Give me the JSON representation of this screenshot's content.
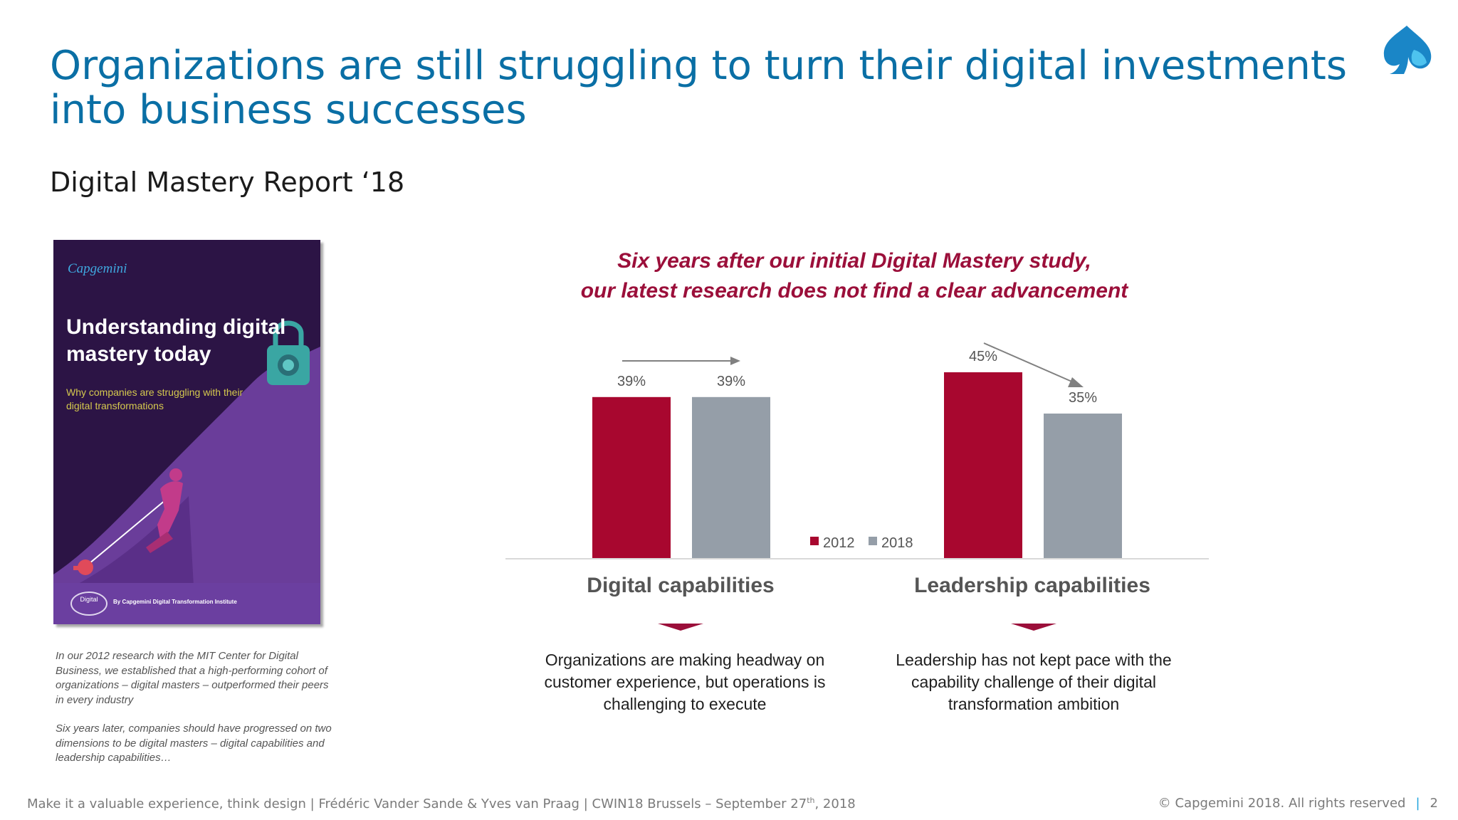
{
  "slide": {
    "title": "Organizations are still struggling to turn their digital investments into business successes",
    "subtitle": "Digital Mastery Report ‘18"
  },
  "book_cover": {
    "brand": "Capgemini",
    "title": "Understanding digital mastery today",
    "subtitle": "Why companies are struggling with their digital transformations",
    "badge": "Digital",
    "footer": "By Capgemini Digital Transformation Institute"
  },
  "side_note": {
    "paragraph_1": "In our 2012 research with the MIT Center for Digital Business, we established that a high-performing cohort of organizations – digital masters – outperformed their peers in every industry",
    "paragraph_2": "Six years later, companies should have progressed on two dimensions to be digital masters – digital capabilities and leadership capabilities…"
  },
  "chart_headline": {
    "line1": "Six years after our initial Digital Mastery study,",
    "line2": "our latest research does not find a clear advancement"
  },
  "chart_data": {
    "type": "bar",
    "title": "",
    "categories": [
      "Digital capabilities",
      "Leadership capabilities"
    ],
    "series": [
      {
        "name": "2012",
        "values": [
          39,
          45
        ],
        "labels": [
          "39%",
          "45%"
        ],
        "color": "#a8072f"
      },
      {
        "name": "2018",
        "values": [
          39,
          35
        ],
        "labels": [
          "39%",
          "35%"
        ],
        "color": "#959ea8"
      }
    ],
    "ylim": [
      0,
      50
    ],
    "unit": "%",
    "grid": false,
    "legend": "bottom-center",
    "trend": [
      "flat",
      "down"
    ]
  },
  "captions": {
    "digital": "Organizations are making headway on customer experience, but operations is challenging to execute",
    "leadership": "Leadership has not kept pace with the capability challenge of their digital transformation ambition"
  },
  "footer": {
    "left_main": "Make it a valuable experience, think design | Frédéric Vander Sande & Yves van Praag | CWIN18 Brussels – September 27",
    "left_sup": "th",
    "left_tail": ", 2018",
    "copyright": "© Capgemini 2018. All rights reserved",
    "separator": "|",
    "page_number": "2"
  },
  "colors": {
    "title": "#0a6fa5",
    "accent": "#9b0f3a",
    "bar_2012": "#a8072f",
    "bar_2018": "#959ea8"
  }
}
